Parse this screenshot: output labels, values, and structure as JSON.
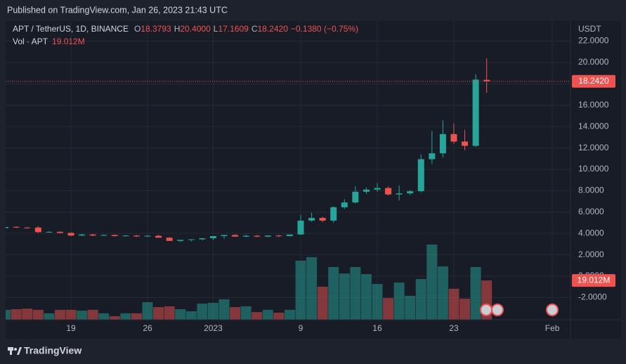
{
  "header": {
    "title": "Published on TradingView.com, Jan 26, 2023 21:43 UTC"
  },
  "footer": {
    "brand": "TradingView"
  },
  "chart_data": {
    "type": "candlestick",
    "legend": {
      "symbol": "APT / TetherUS, 1D, BINANCE",
      "open": {
        "prefix": "O",
        "value": "18.3793"
      },
      "high": {
        "prefix": "H",
        "value": "20.4000"
      },
      "low": {
        "prefix": "L",
        "value": "17.1609"
      },
      "close": {
        "prefix": "C",
        "value": "18.2420"
      },
      "change": "−0.1380 (−0.75%)",
      "volume_name": "Vol · APT",
      "volume_value": "19.012M"
    },
    "axis_unit": "USDT",
    "up_color": "#26a69a",
    "down_color": "#ef5350",
    "categories": [
      null,
      null,
      null,
      null,
      null,
      null,
      "19",
      null,
      null,
      null,
      null,
      null,
      null,
      "26",
      null,
      null,
      null,
      null,
      null,
      "2023",
      null,
      null,
      null,
      null,
      null,
      null,
      null,
      "9",
      null,
      null,
      null,
      null,
      null,
      null,
      "16",
      null,
      null,
      null,
      null,
      null,
      null,
      "23",
      null,
      null,
      null,
      null,
      null,
      null,
      null,
      null,
      "Feb"
    ],
    "open": [
      4.5,
      4.62,
      4.55,
      4.55,
      4.12,
      4.15,
      4.05,
      3.8,
      3.9,
      3.8,
      3.85,
      3.75,
      3.8,
      3.72,
      3.78,
      3.6,
      3.3,
      3.4,
      3.45,
      3.55,
      3.75,
      3.85,
      3.7,
      3.78,
      3.7,
      3.8,
      3.75,
      3.9,
      5.2,
      5.45,
      5.2,
      6.45,
      6.9,
      7.9,
      8.1,
      8.25,
      7.65,
      7.75,
      7.95,
      10.95,
      11.5,
      13.3,
      12.6,
      12.2,
      18.3793,
      null,
      null,
      null,
      null,
      null,
      null
    ],
    "high": [
      4.65,
      4.67,
      4.6,
      4.7,
      4.2,
      4.2,
      4.1,
      3.95,
      3.95,
      3.9,
      3.9,
      3.85,
      3.85,
      3.83,
      3.85,
      3.65,
      3.35,
      3.45,
      3.5,
      3.62,
      3.82,
      3.92,
      3.9,
      3.85,
      3.82,
      3.87,
      3.85,
      5.75,
      5.95,
      5.55,
      6.55,
      7.2,
      8.4,
      8.3,
      8.7,
      8.4,
      8.5,
      8.05,
      11.4,
      13.6,
      14.6,
      14.3,
      13.7,
      18.9,
      20.4,
      null,
      null,
      null,
      null,
      null,
      null
    ],
    "low": [
      4.45,
      4.5,
      4.47,
      4.05,
      4.07,
      4.0,
      3.75,
      3.75,
      3.75,
      3.75,
      3.7,
      3.7,
      3.67,
      3.67,
      3.7,
      3.55,
      3.2,
      3.25,
      3.35,
      3.4,
      3.5,
      3.7,
      3.65,
      3.65,
      3.65,
      3.65,
      3.7,
      3.85,
      5.1,
      5.05,
      5.0,
      6.3,
      6.8,
      7.7,
      7.9,
      7.55,
      7.1,
      7.6,
      7.85,
      10.5,
      11.1,
      12.4,
      11.8,
      12.1,
      17.1609,
      null,
      null,
      null,
      null,
      null,
      null
    ],
    "close": [
      4.6,
      4.55,
      4.52,
      4.12,
      4.15,
      4.05,
      3.8,
      3.9,
      3.8,
      3.85,
      3.75,
      3.8,
      3.72,
      3.78,
      3.6,
      3.3,
      3.4,
      3.45,
      3.55,
      3.75,
      3.85,
      3.7,
      3.78,
      3.7,
      3.8,
      3.75,
      3.9,
      5.2,
      5.45,
      5.2,
      6.45,
      6.9,
      7.9,
      8.1,
      8.25,
      7.65,
      7.75,
      7.95,
      10.95,
      11.5,
      13.3,
      12.6,
      12.2,
      18.4,
      18.242,
      null,
      null,
      null,
      null,
      null,
      null
    ],
    "volume": [
      4.8,
      5.1,
      5.4,
      4.8,
      3.1,
      4.8,
      4.8,
      4.4,
      4.8,
      3.1,
      1.7,
      3.1,
      3.1,
      8.5,
      6.1,
      6.5,
      5.1,
      4.1,
      7.8,
      8.2,
      9.9,
      6.1,
      6.5,
      3.7,
      4.8,
      3.4,
      4.8,
      28.6,
      30.3,
      16.0,
      25.5,
      22.4,
      25.5,
      22.1,
      17.3,
      10.5,
      18.0,
      11.6,
      19.7,
      36.4,
      25.8,
      15.0,
      10.2,
      25.5,
      19.012,
      null,
      null,
      null,
      null,
      null,
      null
    ],
    "last_price_label": "18.2420",
    "ylim": [
      -4.08,
      23.88
    ],
    "yticks": [
      {
        "value": -2,
        "label": "-2.0000"
      },
      {
        "value": 0,
        "label": "0.0000"
      },
      {
        "value": 2,
        "label": "2.0000"
      },
      {
        "value": 4,
        "label": "4.0000"
      },
      {
        "value": 6,
        "label": "6.0000"
      },
      {
        "value": 8,
        "label": "8.0000"
      },
      {
        "value": 10,
        "label": "10.0000"
      },
      {
        "value": 12,
        "label": "12.0000"
      },
      {
        "value": 14,
        "label": "14.0000"
      },
      {
        "value": 16,
        "label": "16.0000"
      },
      {
        "value": 18,
        "label": "18.0000"
      },
      {
        "value": 20,
        "label": "20.0000"
      },
      {
        "value": 22,
        "label": "22.0000"
      }
    ],
    "grid": true
  }
}
